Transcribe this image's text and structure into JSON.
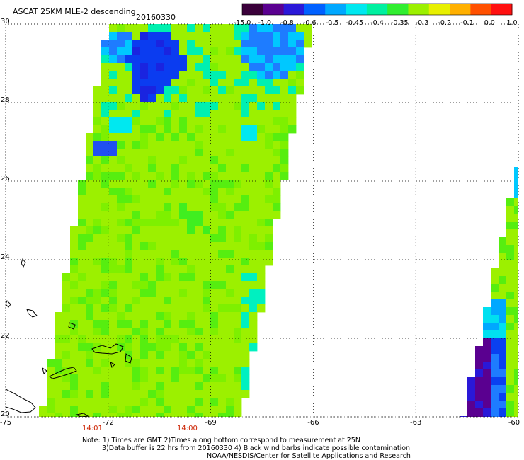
{
  "header": {
    "product": "ASCAT 25KM MLE-2 descending",
    "date": "20160330"
  },
  "colorbar": {
    "ticks": [
      "-15.0",
      "-1.0",
      "-0.8",
      "-0.6",
      "-0.5",
      "-0.45",
      "-0.4",
      "-0.35",
      "-0.3",
      "-0.2",
      "-0.1",
      "0.0",
      "1.0"
    ],
    "colors": [
      "#3a003a",
      "#5a0090",
      "#2a18d8",
      "#0060ff",
      "#00a8ff",
      "#00e8f0",
      "#00f0a0",
      "#30ee30",
      "#9cf000",
      "#e8f000",
      "#ffb000",
      "#ff5000",
      "#ff1010"
    ]
  },
  "axes": {
    "lon_ticks": [
      "-75",
      "-72",
      "-69",
      "-66",
      "-63",
      "-60"
    ],
    "lat_ticks": [
      "30",
      "28",
      "26",
      "24",
      "22",
      "20"
    ]
  },
  "pass_times": [
    "14:01",
    "14:00"
  ],
  "notes": [
    "Note: 1) Times are GMT 2)Times along bottom correspond to measurement at 25N",
    "3)Data buffer is 22 hrs from 20160330 4) Black wind barbs indicate possible contamination",
    "NOAA/NESDIS/Center for Satellite Applications and Research"
  ]
}
